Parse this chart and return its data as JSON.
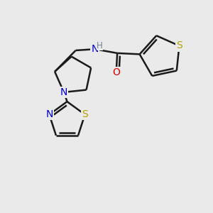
{
  "background_color": "#eaeaea",
  "bond_color": "#1a1a1a",
  "bond_width": 1.8,
  "atom_colors": {
    "S": "#b8a000",
    "N_blue": "#0000cc",
    "N_gray": "#708090",
    "O": "#dd0000",
    "C": "#1a1a1a"
  },
  "font_size": 10,
  "fig_size": [
    3.0,
    3.0
  ],
  "dpi": 100,
  "xlim": [
    0,
    10
  ],
  "ylim": [
    0,
    10
  ]
}
